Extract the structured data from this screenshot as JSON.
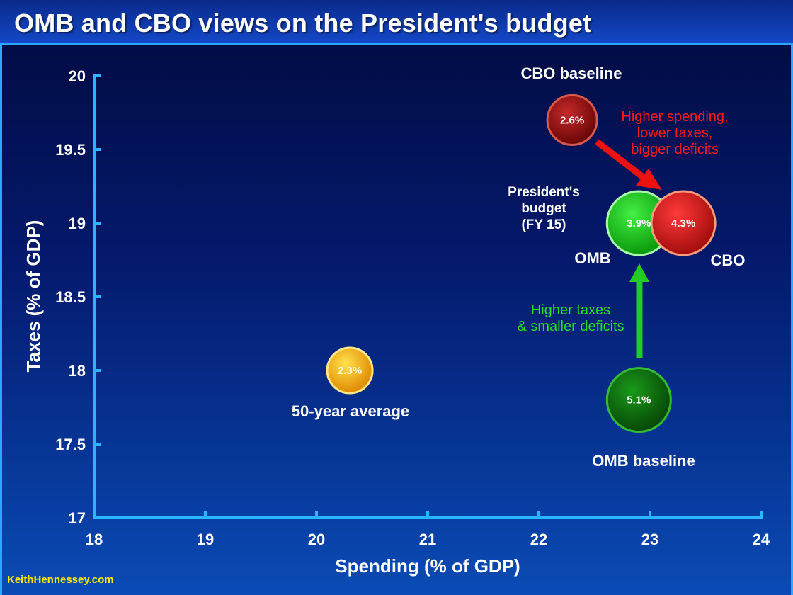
{
  "title": "OMB and CBO views on the President's budget",
  "footer": "KeithHennessey.com",
  "chart_data": {
    "type": "scatter",
    "xlabel": "Spending (% of GDP)",
    "ylabel": "Taxes (% of GDP)",
    "xlim": [
      18,
      24
    ],
    "ylim": [
      17,
      20
    ],
    "xticks": [
      "18",
      "19",
      "20",
      "21",
      "22",
      "23",
      "24"
    ],
    "yticks": [
      "17",
      "17.5",
      "18",
      "18.5",
      "19",
      "19.5",
      "20"
    ],
    "grid": false,
    "points": [
      {
        "id": "avg",
        "x": 20.3,
        "y": 18.0,
        "value_label": "2.3%",
        "label": "50-year average",
        "color": "#f5a300",
        "size": "small"
      },
      {
        "id": "cbo-baseline",
        "x": 22.3,
        "y": 19.7,
        "value_label": "2.6%",
        "label": "CBO baseline",
        "color": "#9a0f0f",
        "size": "medium"
      },
      {
        "id": "omb",
        "x": 22.9,
        "y": 19.0,
        "value_label": "3.9%",
        "label": "OMB",
        "color": "#22cc22",
        "size": "large"
      },
      {
        "id": "cbo",
        "x": 23.3,
        "y": 19.0,
        "value_label": "4.3%",
        "label": "CBO",
        "color": "#e01a1a",
        "size": "large"
      },
      {
        "id": "omb-baseline",
        "x": 22.9,
        "y": 17.8,
        "value_label": "5.1%",
        "label": "OMB baseline",
        "color": "#0e7a0e",
        "size": "large"
      }
    ],
    "annotations": {
      "president_budget": [
        "President's",
        "budget",
        "(FY 15)"
      ],
      "red_note": [
        "Higher spending,",
        "lower taxes,",
        "bigger deficits"
      ],
      "green_note": [
        "Higher taxes",
        "& smaller deficits"
      ]
    },
    "colors": {
      "axis": "#29b6ff",
      "red_note": "#ff1a1a",
      "green_note": "#22dd22"
    }
  }
}
